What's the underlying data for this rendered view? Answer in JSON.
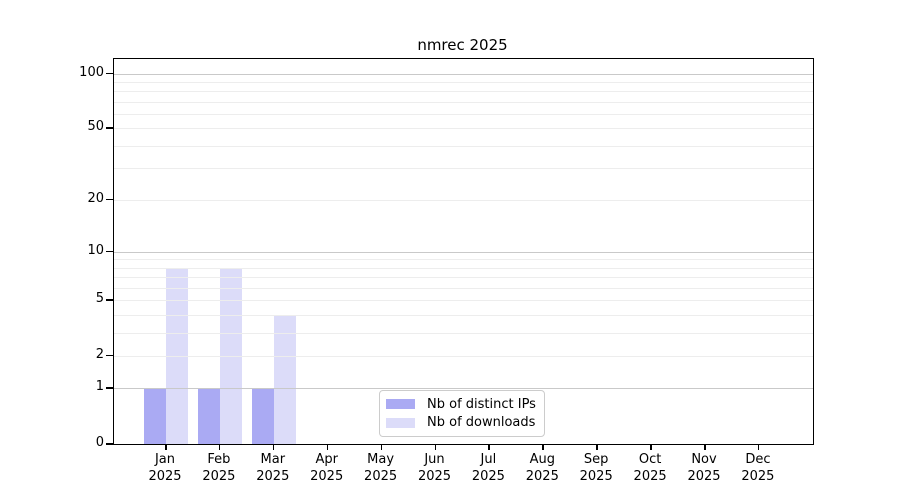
{
  "title": "nmrec 2025",
  "chart_data": {
    "type": "bar",
    "title": "nmrec 2025",
    "categories": [
      "Jan",
      "Feb",
      "Mar",
      "Apr",
      "May",
      "Jun",
      "Jul",
      "Aug",
      "Sep",
      "Oct",
      "Nov",
      "Dec"
    ],
    "year_label": "2025",
    "series": [
      {
        "name": "Nb of distinct IPs",
        "color": "#aaaaf3",
        "values": [
          1,
          1,
          1,
          0,
          0,
          0,
          0,
          0,
          0,
          0,
          0,
          0
        ]
      },
      {
        "name": "Nb of downloads",
        "color": "#dcdcf9",
        "values": [
          8,
          8,
          4,
          0,
          0,
          0,
          0,
          0,
          0,
          0,
          0,
          0
        ]
      }
    ],
    "xlabel": "",
    "ylabel": "",
    "yscale": "log1p",
    "yticks": [
      0,
      1,
      2,
      5,
      10,
      20,
      50,
      100
    ],
    "ytick_labels": [
      "0",
      "1",
      "2",
      "5",
      "10",
      "20",
      "50",
      "100"
    ],
    "ylim": [
      0,
      120
    ],
    "grid": "horizontal major+minor",
    "legend_position": "lower center inside",
    "colors": {
      "major_grid": "#c9c9c9",
      "minor_grid": "#ededed",
      "spine": "#000000",
      "text": "#000000",
      "background": "#ffffff"
    }
  }
}
